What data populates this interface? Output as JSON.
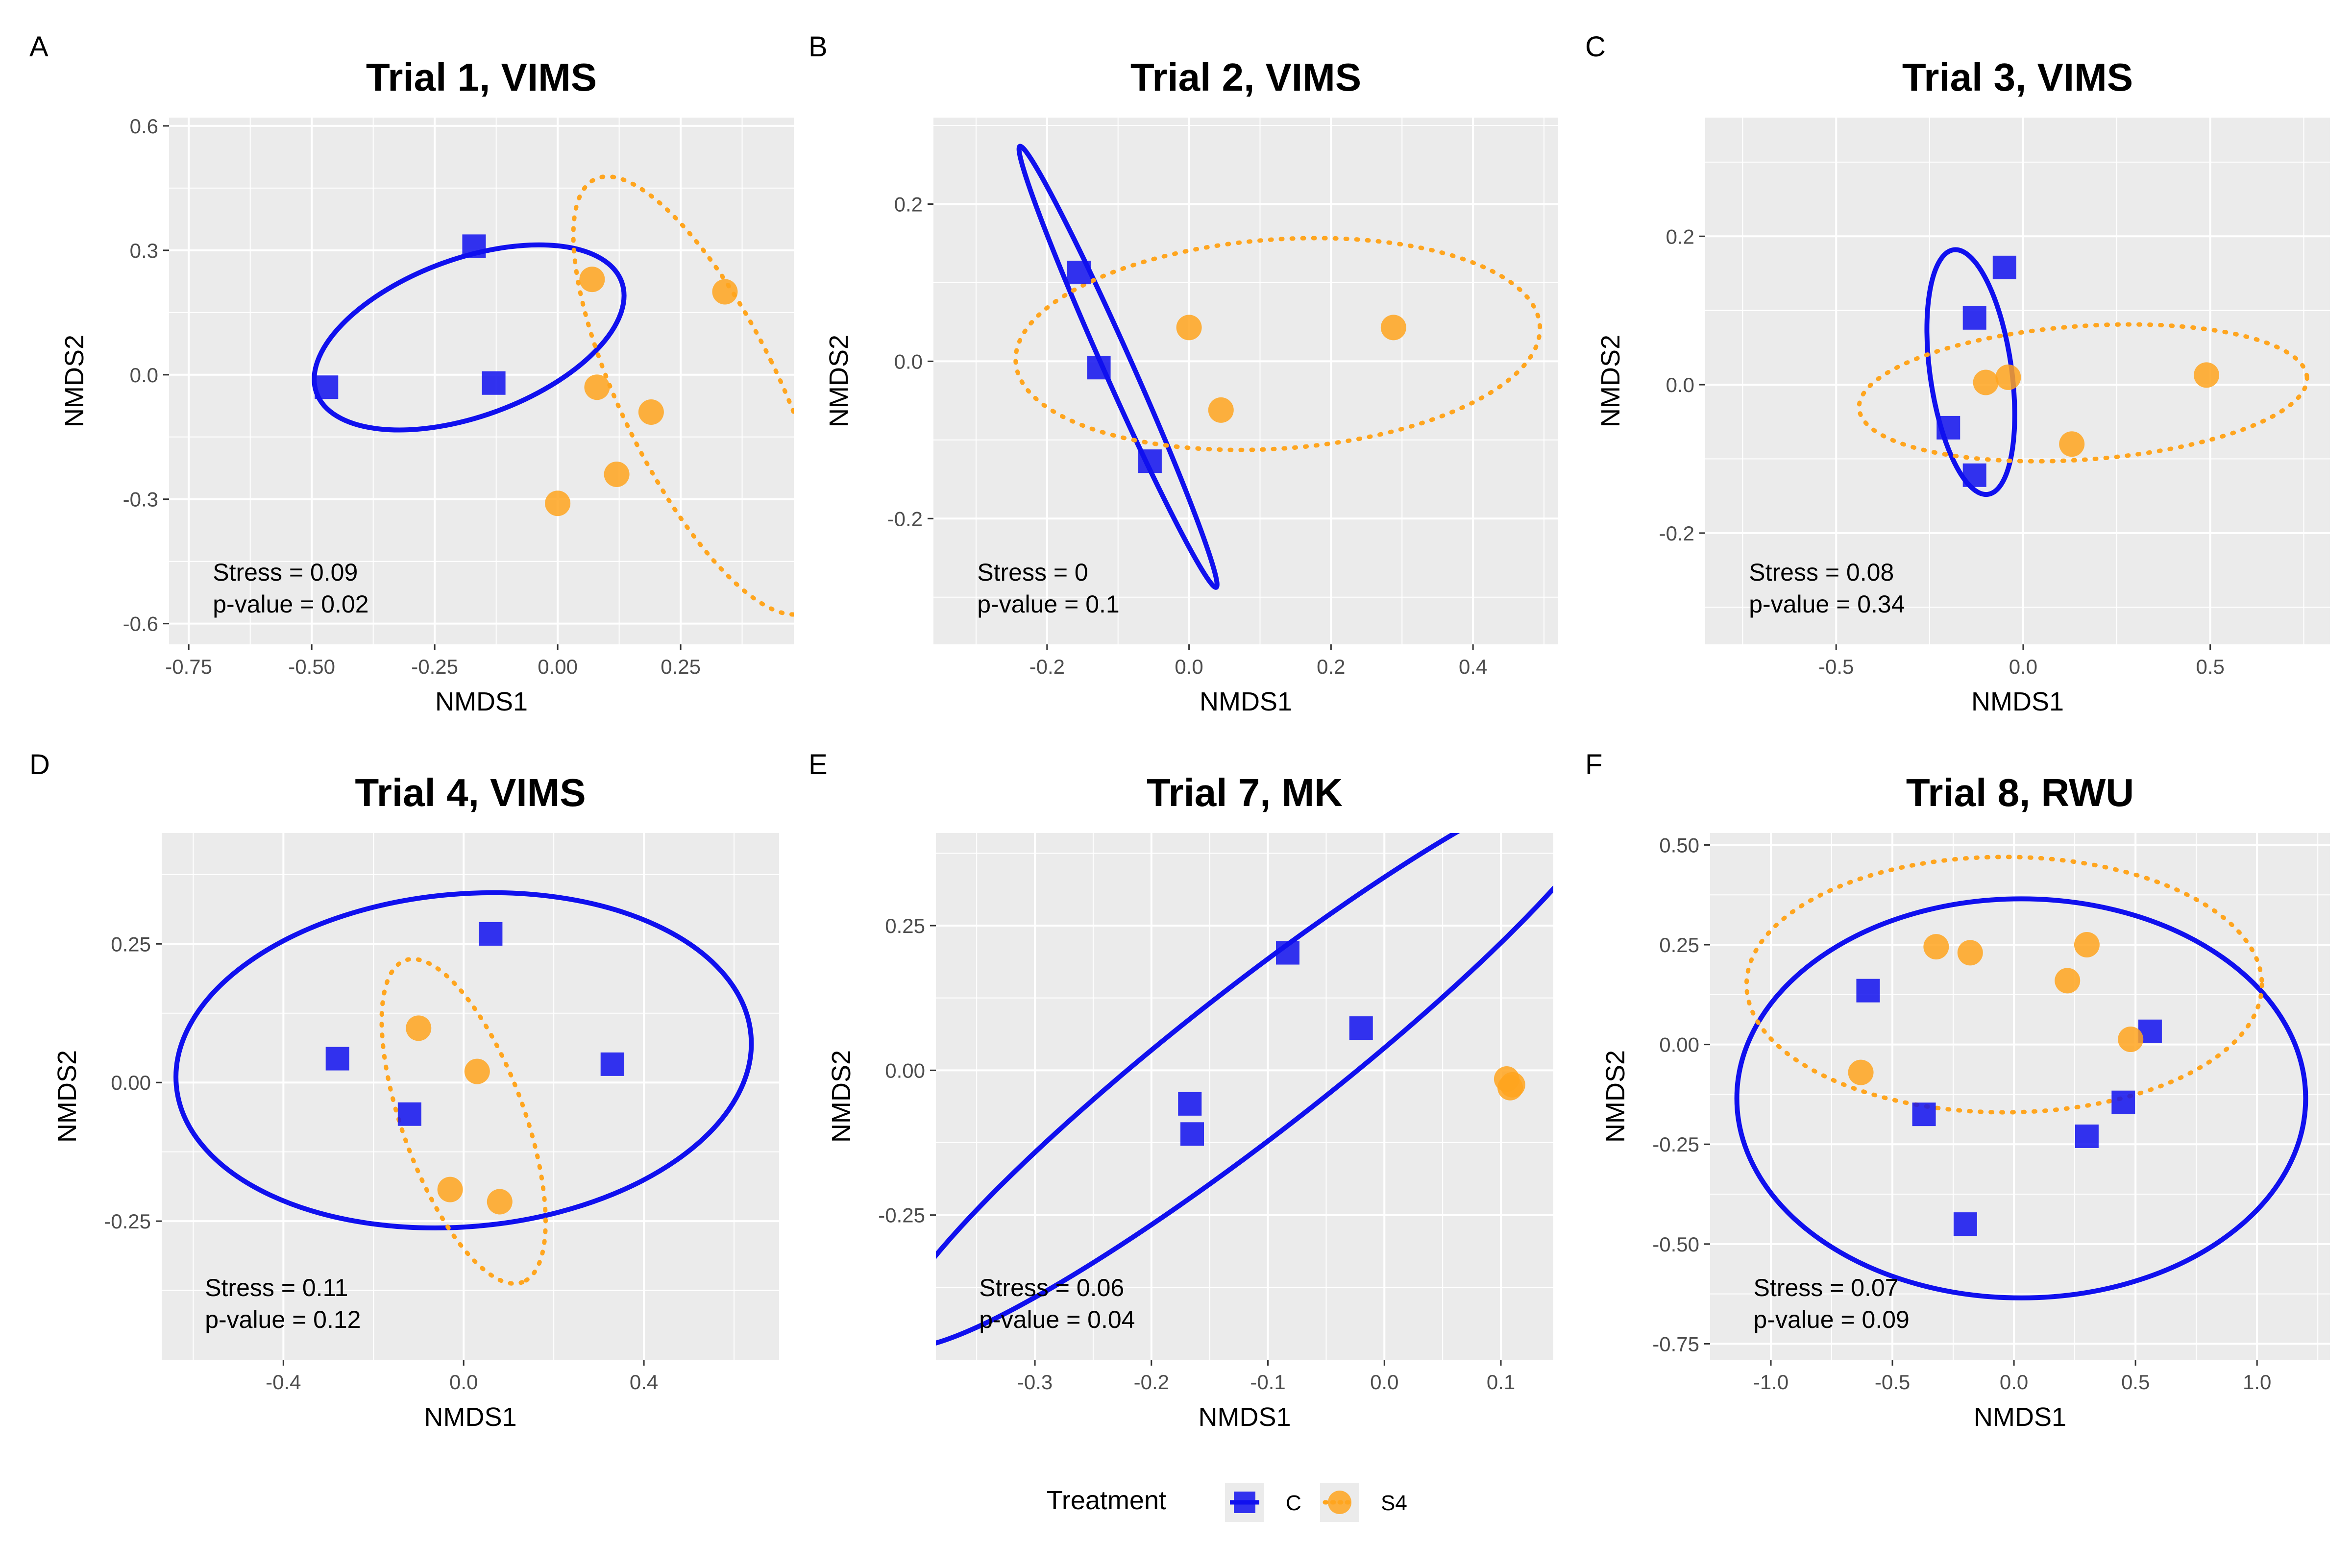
{
  "colors": {
    "control": "#1010ee",
    "treated": "#ffa51e",
    "panel_bg": "#ebebeb",
    "grid": "#ffffff",
    "text": "#000000",
    "tick_text": "#4d4d4d"
  },
  "xlabel": "NMDS1",
  "ylabel": "NMDS2",
  "legend": {
    "title": "Treatment",
    "entries": [
      {
        "label": "C",
        "series": "C"
      },
      {
        "label": "S4",
        "series": "S4"
      }
    ]
  },
  "stress_label": "Stress = ",
  "pvalue_label": "p-value = ",
  "chart_data": [
    {
      "type": "scatter",
      "panel_label": "A",
      "title": "Trial 1, VIMS",
      "xlim": [
        -0.79,
        0.48
      ],
      "ylim": [
        -0.65,
        0.62
      ],
      "xticks": [
        -0.75,
        -0.5,
        -0.25,
        0,
        0.25
      ],
      "xtick_labels": [
        "-0.75",
        "-0.50",
        "-0.25",
        "0.00",
        "0.25"
      ],
      "yticks": [
        -0.6,
        -0.3,
        0,
        0.3,
        0.6
      ],
      "ytick_labels": [
        "-0.6",
        "-0.3",
        "0.0",
        "0.3",
        "0.6"
      ],
      "stress": "0.09",
      "pvalue": "0.02",
      "series": [
        {
          "name": "C",
          "x": [
            -0.17,
            -0.47,
            -0.13
          ],
          "y": [
            0.31,
            -0.03,
            -0.02
          ]
        },
        {
          "name": "S4",
          "x": [
            0.07,
            0.34,
            0.08,
            0.19,
            0.12,
            0.0
          ],
          "y": [
            0.23,
            0.2,
            -0.03,
            -0.09,
            -0.24,
            -0.31
          ]
        }
      ],
      "ellipses": [
        {
          "series": "C",
          "cx": -0.18,
          "cy": 0.09,
          "rx": 0.33,
          "ry": 0.19,
          "angle": 20
        },
        {
          "series": "S4",
          "cx": 0.29,
          "cy": -0.05,
          "rx": 0.16,
          "ry": 0.58,
          "angle": 26
        }
      ]
    },
    {
      "type": "scatter",
      "panel_label": "B",
      "title": "Trial 2, VIMS",
      "xlim": [
        -0.36,
        0.52
      ],
      "ylim": [
        -0.36,
        0.31
      ],
      "xticks": [
        -0.2,
        0,
        0.2,
        0.4
      ],
      "xtick_labels": [
        "-0.2",
        "0.0",
        "0.2",
        "0.4"
      ],
      "yticks": [
        -0.2,
        0,
        0.2
      ],
      "ytick_labels": [
        "-0.2",
        "0.0",
        "0.2"
      ],
      "stress": "0",
      "pvalue": "0.1",
      "series": [
        {
          "name": "C",
          "x": [
            -0.155,
            -0.127,
            -0.055
          ],
          "y": [
            0.113,
            -0.008,
            -0.127
          ]
        },
        {
          "name": "S4",
          "x": [
            0.0,
            0.288,
            0.045
          ],
          "y": [
            0.043,
            0.043,
            -0.062
          ]
        }
      ],
      "ellipses": [
        {
          "series": "C",
          "cx": -0.1,
          "cy": -0.007,
          "rx": 0.34,
          "ry": 0.018,
          "angle": -66
        },
        {
          "series": "S4",
          "cx": 0.125,
          "cy": 0.022,
          "rx": 0.37,
          "ry": 0.133,
          "angle": 4
        }
      ]
    },
    {
      "type": "scatter",
      "panel_label": "C",
      "title": "Trial 3, VIMS",
      "xlim": [
        -0.85,
        0.82
      ],
      "ylim": [
        -0.35,
        0.36
      ],
      "xticks": [
        -0.5,
        0,
        0.5
      ],
      "xtick_labels": [
        "-0.5",
        "0.0",
        "0.5"
      ],
      "yticks": [
        -0.2,
        0,
        0.2
      ],
      "ytick_labels": [
        "-0.2",
        "0.0",
        "0.2"
      ],
      "stress": "0.08",
      "pvalue": "0.34",
      "series": [
        {
          "name": "C",
          "x": [
            -0.05,
            -0.13,
            -0.2,
            -0.13
          ],
          "y": [
            0.158,
            0.09,
            -0.058,
            -0.122
          ]
        },
        {
          "name": "S4",
          "x": [
            -0.04,
            -0.1,
            0.13,
            0.49
          ],
          "y": [
            0.01,
            0.003,
            -0.08,
            0.013
          ]
        }
      ],
      "ellipses": [
        {
          "series": "C",
          "cx": -0.14,
          "cy": 0.017,
          "rx": 0.33,
          "ry": 0.055,
          "angle": -82
        },
        {
          "series": "S4",
          "cx": 0.16,
          "cy": -0.011,
          "rx": 0.6,
          "ry": 0.09,
          "angle": 4
        }
      ]
    },
    {
      "type": "scatter",
      "panel_label": "D",
      "title": "Trial 4, VIMS",
      "xlim": [
        -0.67,
        0.7
      ],
      "ylim": [
        -0.5,
        0.45
      ],
      "xticks": [
        -0.4,
        0,
        0.4
      ],
      "xtick_labels": [
        "-0.4",
        "0.0",
        "0.4"
      ],
      "yticks": [
        -0.25,
        0,
        0.25
      ],
      "ytick_labels": [
        "-0.25",
        "0.00",
        "0.25"
      ],
      "stress": "0.11",
      "pvalue": "0.12",
      "series": [
        {
          "name": "C",
          "x": [
            0.06,
            -0.28,
            -0.12,
            0.33
          ],
          "y": [
            0.268,
            0.043,
            -0.057,
            0.033
          ]
        },
        {
          "name": "S4",
          "x": [
            -0.1,
            0.03,
            -0.03,
            0.08
          ],
          "y": [
            0.098,
            0.02,
            -0.193,
            -0.215
          ]
        }
      ],
      "ellipses": [
        {
          "series": "C",
          "cx": 0.0,
          "cy": 0.04,
          "rx": 0.64,
          "ry": 0.3,
          "angle": 5
        },
        {
          "series": "S4",
          "cx": 0.0,
          "cy": -0.07,
          "rx": 0.38,
          "ry": 0.11,
          "angle": -70
        }
      ]
    },
    {
      "type": "scatter",
      "panel_label": "E",
      "title": "Trial 7, MK",
      "xlim": [
        -0.385,
        0.145
      ],
      "ylim": [
        -0.5,
        0.41
      ],
      "xticks": [
        -0.3,
        -0.2,
        -0.1,
        0,
        0.1
      ],
      "xtick_labels": [
        "-0.3",
        "-0.2",
        "-0.1",
        "0.0",
        "0.1"
      ],
      "yticks": [
        -0.25,
        0,
        0.25
      ],
      "ytick_labels": [
        "-0.25",
        "0.00",
        "0.25"
      ],
      "stress": "0.06",
      "pvalue": "0.04",
      "series": [
        {
          "name": "C",
          "x": [
            -0.083,
            -0.02,
            -0.167,
            -0.165
          ],
          "y": [
            0.203,
            0.073,
            -0.058,
            -0.11
          ]
        },
        {
          "name": "S4",
          "x": [
            0.105,
            0.11,
            0.108
          ],
          "y": [
            -0.015,
            -0.025,
            -0.03
          ]
        }
      ],
      "ellipses": [
        {
          "series": "C",
          "cx": -0.11,
          "cy": 0.02,
          "rx": 0.395,
          "ry": 0.125,
          "angle": 38
        }
      ]
    },
    {
      "type": "scatter",
      "panel_label": "F",
      "title": "Trial 8, RWU",
      "xlim": [
        -1.25,
        1.3
      ],
      "ylim": [
        -0.79,
        0.53
      ],
      "xticks": [
        -1,
        -0.5,
        0,
        0.5,
        1
      ],
      "xtick_labels": [
        "-1.0",
        "-0.5",
        "0.0",
        "0.5",
        "1.0"
      ],
      "yticks": [
        -0.75,
        -0.5,
        -0.25,
        0,
        0.25,
        0.5
      ],
      "ytick_labels": [
        "-0.75",
        "-0.50",
        "-0.25",
        "0.00",
        "0.25",
        "0.50"
      ],
      "stress": "0.07",
      "pvalue": "0.09",
      "series": [
        {
          "name": "C",
          "x": [
            -0.6,
            0.56,
            -0.37,
            0.45,
            0.3,
            -0.2
          ],
          "y": [
            0.135,
            0.033,
            -0.175,
            -0.145,
            -0.23,
            -0.45
          ]
        },
        {
          "name": "S4",
          "x": [
            -0.32,
            -0.18,
            0.3,
            0.22,
            0.48,
            -0.63
          ],
          "y": [
            0.245,
            0.23,
            0.25,
            0.16,
            0.013,
            -0.07
          ]
        }
      ],
      "ellipses": [
        {
          "series": "C",
          "cx": 0.03,
          "cy": -0.135,
          "rx": 1.17,
          "ry": 0.5,
          "angle": 0
        },
        {
          "series": "S4",
          "cx": -0.04,
          "cy": 0.15,
          "rx": 1.06,
          "ry": 0.32,
          "angle": 0
        }
      ]
    }
  ]
}
